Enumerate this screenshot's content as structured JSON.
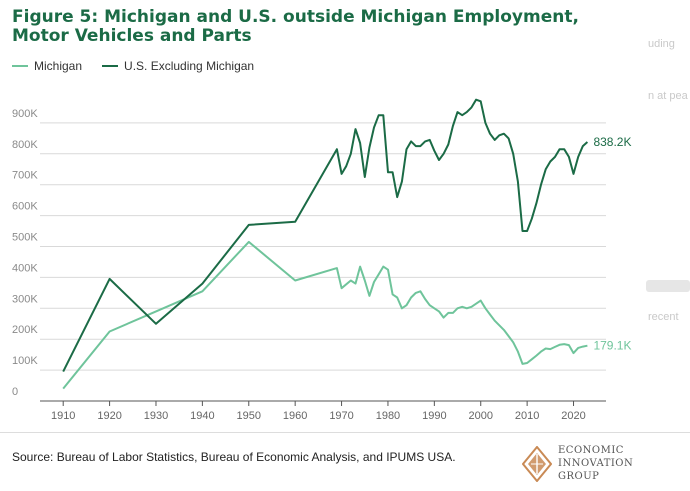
{
  "title": "Figure 5: Michigan and U.S. outside Michigan Employment, Motor Vehicles and Parts",
  "legend": {
    "michigan": "Michigan",
    "us_excl": "U.S. Excluding Michigan"
  },
  "source": "Source: Bureau of Labor Statistics, Bureau of Economic Analysis, and IPUMS USA.",
  "logo": {
    "line1": "ECONOMIC",
    "line2": "INNOVATION",
    "line3": "GROUP"
  },
  "ghost": {
    "t1": "uding",
    "t2": "n at pea",
    "t3": "recent"
  },
  "colors": {
    "michigan": "#6fc49b",
    "us_excl": "#1b6b46",
    "title": "#1b6b46",
    "grid": "#d9d9d9",
    "logo": "#c98a55"
  },
  "chart_data": {
    "type": "line",
    "xlim": [
      1905,
      2027
    ],
    "ylim": [
      0,
      1000000
    ],
    "x_ticks": [
      1910,
      1920,
      1930,
      1940,
      1950,
      1960,
      1970,
      1980,
      1990,
      2000,
      2010,
      2020
    ],
    "y_ticks": [
      0,
      100000,
      200000,
      300000,
      400000,
      500000,
      600000,
      700000,
      800000,
      900000
    ],
    "y_tick_labels": [
      "0",
      "100K",
      "200K",
      "300K",
      "400K",
      "500K",
      "600K",
      "700K",
      "800K",
      "900K"
    ],
    "grid": true,
    "legend_position": "top-left",
    "series": [
      {
        "name": "Michigan",
        "end_label": "179.1K",
        "points": [
          [
            1910,
            40000
          ],
          [
            1920,
            225000
          ],
          [
            1930,
            290000
          ],
          [
            1940,
            355000
          ],
          [
            1950,
            515000
          ],
          [
            1960,
            390000
          ],
          [
            1969,
            430000
          ],
          [
            1970,
            365000
          ],
          [
            1972,
            390000
          ],
          [
            1973,
            380000
          ],
          [
            1974,
            435000
          ],
          [
            1975,
            390000
          ],
          [
            1976,
            340000
          ],
          [
            1977,
            385000
          ],
          [
            1978,
            410000
          ],
          [
            1979,
            435000
          ],
          [
            1980,
            425000
          ],
          [
            1981,
            345000
          ],
          [
            1982,
            335000
          ],
          [
            1983,
            300000
          ],
          [
            1984,
            310000
          ],
          [
            1985,
            335000
          ],
          [
            1986,
            350000
          ],
          [
            1987,
            355000
          ],
          [
            1988,
            330000
          ],
          [
            1989,
            310000
          ],
          [
            1990,
            300000
          ],
          [
            1991,
            290000
          ],
          [
            1992,
            270000
          ],
          [
            1993,
            285000
          ],
          [
            1994,
            285000
          ],
          [
            1995,
            300000
          ],
          [
            1996,
            305000
          ],
          [
            1997,
            300000
          ],
          [
            1998,
            305000
          ],
          [
            1999,
            315000
          ],
          [
            2000,
            325000
          ],
          [
            2001,
            300000
          ],
          [
            2002,
            280000
          ],
          [
            2003,
            260000
          ],
          [
            2004,
            245000
          ],
          [
            2005,
            230000
          ],
          [
            2006,
            210000
          ],
          [
            2007,
            190000
          ],
          [
            2008,
            160000
          ],
          [
            2009,
            120000
          ],
          [
            2010,
            123000
          ],
          [
            2011,
            135000
          ],
          [
            2012,
            147000
          ],
          [
            2013,
            160000
          ],
          [
            2014,
            170000
          ],
          [
            2015,
            168000
          ],
          [
            2016,
            175000
          ],
          [
            2017,
            182000
          ],
          [
            2018,
            184000
          ],
          [
            2019,
            181000
          ],
          [
            2020,
            155000
          ],
          [
            2021,
            172000
          ],
          [
            2022,
            176000
          ],
          [
            2023,
            179100
          ]
        ]
      },
      {
        "name": "U.S. Excluding Michigan",
        "end_label": "838.2K",
        "points": [
          [
            1910,
            95000
          ],
          [
            1920,
            395000
          ],
          [
            1930,
            250000
          ],
          [
            1940,
            380000
          ],
          [
            1950,
            570000
          ],
          [
            1960,
            580000
          ],
          [
            1969,
            815000
          ],
          [
            1970,
            735000
          ],
          [
            1971,
            760000
          ],
          [
            1972,
            800000
          ],
          [
            1973,
            880000
          ],
          [
            1974,
            835000
          ],
          [
            1975,
            725000
          ],
          [
            1976,
            820000
          ],
          [
            1977,
            885000
          ],
          [
            1978,
            925000
          ],
          [
            1979,
            925000
          ],
          [
            1980,
            740000
          ],
          [
            1981,
            740000
          ],
          [
            1982,
            660000
          ],
          [
            1983,
            710000
          ],
          [
            1984,
            815000
          ],
          [
            1985,
            840000
          ],
          [
            1986,
            825000
          ],
          [
            1987,
            825000
          ],
          [
            1988,
            840000
          ],
          [
            1989,
            845000
          ],
          [
            1990,
            810000
          ],
          [
            1991,
            780000
          ],
          [
            1992,
            800000
          ],
          [
            1993,
            830000
          ],
          [
            1994,
            890000
          ],
          [
            1995,
            935000
          ],
          [
            1996,
            925000
          ],
          [
            1997,
            935000
          ],
          [
            1998,
            950000
          ],
          [
            1999,
            975000
          ],
          [
            2000,
            970000
          ],
          [
            2001,
            900000
          ],
          [
            2002,
            865000
          ],
          [
            2003,
            845000
          ],
          [
            2004,
            860000
          ],
          [
            2005,
            865000
          ],
          [
            2006,
            850000
          ],
          [
            2007,
            800000
          ],
          [
            2008,
            710000
          ],
          [
            2009,
            550000
          ],
          [
            2010,
            550000
          ],
          [
            2011,
            590000
          ],
          [
            2012,
            640000
          ],
          [
            2013,
            700000
          ],
          [
            2014,
            750000
          ],
          [
            2015,
            775000
          ],
          [
            2016,
            790000
          ],
          [
            2017,
            815000
          ],
          [
            2018,
            815000
          ],
          [
            2019,
            790000
          ],
          [
            2020,
            735000
          ],
          [
            2021,
            790000
          ],
          [
            2022,
            825000
          ],
          [
            2023,
            838200
          ]
        ]
      }
    ]
  }
}
